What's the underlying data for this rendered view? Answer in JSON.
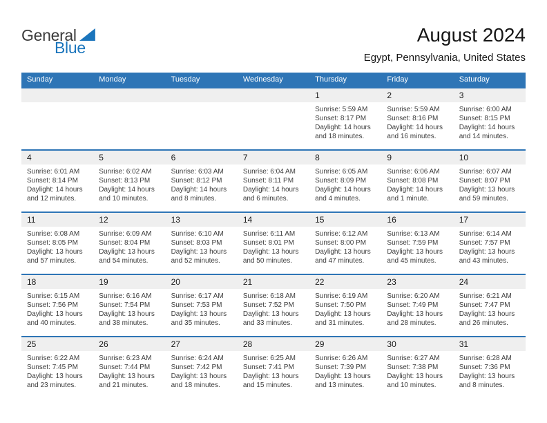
{
  "logo": {
    "part1": "General",
    "part2": "Blue"
  },
  "header": {
    "title": "August 2024",
    "subtitle": "Egypt, Pennsylvania, United States"
  },
  "colors": {
    "header_blue": "#2E75B6",
    "band_gray": "#EFEFEF",
    "logo_blue": "#1B75BC"
  },
  "calendar": {
    "day_headers": [
      "Sunday",
      "Monday",
      "Tuesday",
      "Wednesday",
      "Thursday",
      "Friday",
      "Saturday"
    ],
    "weeks": [
      [
        null,
        null,
        null,
        null,
        {
          "day": "1",
          "lines": [
            "Sunrise: 5:59 AM",
            "Sunset: 8:17 PM",
            "Daylight: 14 hours",
            "and 18 minutes."
          ]
        },
        {
          "day": "2",
          "lines": [
            "Sunrise: 5:59 AM",
            "Sunset: 8:16 PM",
            "Daylight: 14 hours",
            "and 16 minutes."
          ]
        },
        {
          "day": "3",
          "lines": [
            "Sunrise: 6:00 AM",
            "Sunset: 8:15 PM",
            "Daylight: 14 hours",
            "and 14 minutes."
          ]
        }
      ],
      [
        {
          "day": "4",
          "lines": [
            "Sunrise: 6:01 AM",
            "Sunset: 8:14 PM",
            "Daylight: 14 hours",
            "and 12 minutes."
          ]
        },
        {
          "day": "5",
          "lines": [
            "Sunrise: 6:02 AM",
            "Sunset: 8:13 PM",
            "Daylight: 14 hours",
            "and 10 minutes."
          ]
        },
        {
          "day": "6",
          "lines": [
            "Sunrise: 6:03 AM",
            "Sunset: 8:12 PM",
            "Daylight: 14 hours",
            "and 8 minutes."
          ]
        },
        {
          "day": "7",
          "lines": [
            "Sunrise: 6:04 AM",
            "Sunset: 8:11 PM",
            "Daylight: 14 hours",
            "and 6 minutes."
          ]
        },
        {
          "day": "8",
          "lines": [
            "Sunrise: 6:05 AM",
            "Sunset: 8:09 PM",
            "Daylight: 14 hours",
            "and 4 minutes."
          ]
        },
        {
          "day": "9",
          "lines": [
            "Sunrise: 6:06 AM",
            "Sunset: 8:08 PM",
            "Daylight: 14 hours",
            "and 1 minute."
          ]
        },
        {
          "day": "10",
          "lines": [
            "Sunrise: 6:07 AM",
            "Sunset: 8:07 PM",
            "Daylight: 13 hours",
            "and 59 minutes."
          ]
        }
      ],
      [
        {
          "day": "11",
          "lines": [
            "Sunrise: 6:08 AM",
            "Sunset: 8:05 PM",
            "Daylight: 13 hours",
            "and 57 minutes."
          ]
        },
        {
          "day": "12",
          "lines": [
            "Sunrise: 6:09 AM",
            "Sunset: 8:04 PM",
            "Daylight: 13 hours",
            "and 54 minutes."
          ]
        },
        {
          "day": "13",
          "lines": [
            "Sunrise: 6:10 AM",
            "Sunset: 8:03 PM",
            "Daylight: 13 hours",
            "and 52 minutes."
          ]
        },
        {
          "day": "14",
          "lines": [
            "Sunrise: 6:11 AM",
            "Sunset: 8:01 PM",
            "Daylight: 13 hours",
            "and 50 minutes."
          ]
        },
        {
          "day": "15",
          "lines": [
            "Sunrise: 6:12 AM",
            "Sunset: 8:00 PM",
            "Daylight: 13 hours",
            "and 47 minutes."
          ]
        },
        {
          "day": "16",
          "lines": [
            "Sunrise: 6:13 AM",
            "Sunset: 7:59 PM",
            "Daylight: 13 hours",
            "and 45 minutes."
          ]
        },
        {
          "day": "17",
          "lines": [
            "Sunrise: 6:14 AM",
            "Sunset: 7:57 PM",
            "Daylight: 13 hours",
            "and 43 minutes."
          ]
        }
      ],
      [
        {
          "day": "18",
          "lines": [
            "Sunrise: 6:15 AM",
            "Sunset: 7:56 PM",
            "Daylight: 13 hours",
            "and 40 minutes."
          ]
        },
        {
          "day": "19",
          "lines": [
            "Sunrise: 6:16 AM",
            "Sunset: 7:54 PM",
            "Daylight: 13 hours",
            "and 38 minutes."
          ]
        },
        {
          "day": "20",
          "lines": [
            "Sunrise: 6:17 AM",
            "Sunset: 7:53 PM",
            "Daylight: 13 hours",
            "and 35 minutes."
          ]
        },
        {
          "day": "21",
          "lines": [
            "Sunrise: 6:18 AM",
            "Sunset: 7:52 PM",
            "Daylight: 13 hours",
            "and 33 minutes."
          ]
        },
        {
          "day": "22",
          "lines": [
            "Sunrise: 6:19 AM",
            "Sunset: 7:50 PM",
            "Daylight: 13 hours",
            "and 31 minutes."
          ]
        },
        {
          "day": "23",
          "lines": [
            "Sunrise: 6:20 AM",
            "Sunset: 7:49 PM",
            "Daylight: 13 hours",
            "and 28 minutes."
          ]
        },
        {
          "day": "24",
          "lines": [
            "Sunrise: 6:21 AM",
            "Sunset: 7:47 PM",
            "Daylight: 13 hours",
            "and 26 minutes."
          ]
        }
      ],
      [
        {
          "day": "25",
          "lines": [
            "Sunrise: 6:22 AM",
            "Sunset: 7:45 PM",
            "Daylight: 13 hours",
            "and 23 minutes."
          ]
        },
        {
          "day": "26",
          "lines": [
            "Sunrise: 6:23 AM",
            "Sunset: 7:44 PM",
            "Daylight: 13 hours",
            "and 21 minutes."
          ]
        },
        {
          "day": "27",
          "lines": [
            "Sunrise: 6:24 AM",
            "Sunset: 7:42 PM",
            "Daylight: 13 hours",
            "and 18 minutes."
          ]
        },
        {
          "day": "28",
          "lines": [
            "Sunrise: 6:25 AM",
            "Sunset: 7:41 PM",
            "Daylight: 13 hours",
            "and 15 minutes."
          ]
        },
        {
          "day": "29",
          "lines": [
            "Sunrise: 6:26 AM",
            "Sunset: 7:39 PM",
            "Daylight: 13 hours",
            "and 13 minutes."
          ]
        },
        {
          "day": "30",
          "lines": [
            "Sunrise: 6:27 AM",
            "Sunset: 7:38 PM",
            "Daylight: 13 hours",
            "and 10 minutes."
          ]
        },
        {
          "day": "31",
          "lines": [
            "Sunrise: 6:28 AM",
            "Sunset: 7:36 PM",
            "Daylight: 13 hours",
            "and 8 minutes."
          ]
        }
      ]
    ]
  }
}
